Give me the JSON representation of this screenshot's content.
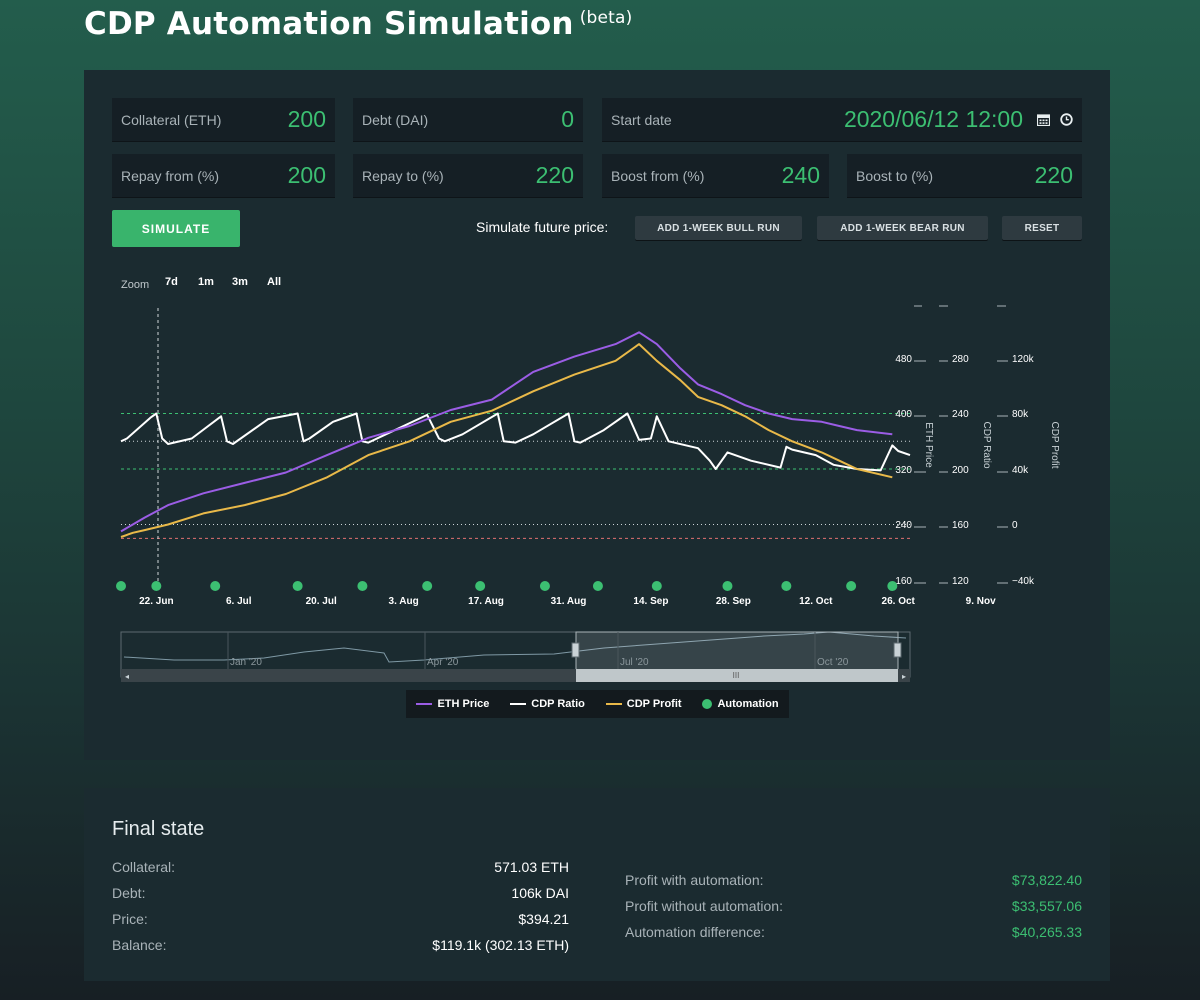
{
  "header": {
    "title": "CDP Automation Simulation",
    "badge": "(beta)"
  },
  "inputs": {
    "collateral": {
      "label": "Collateral (ETH)",
      "value": "200"
    },
    "debt": {
      "label": "Debt (DAI)",
      "value": "0"
    },
    "start_date": {
      "label": "Start date",
      "value": "2020/06/12 12:00",
      "icons": [
        "calendar-icon",
        "clock-icon"
      ]
    },
    "repay_from": {
      "label": "Repay from (%)",
      "value": "200"
    },
    "repay_to": {
      "label": "Repay to (%)",
      "value": "220"
    },
    "boost_from": {
      "label": "Boost from (%)",
      "value": "240"
    },
    "boost_to": {
      "label": "Boost to (%)",
      "value": "220"
    }
  },
  "actions": {
    "simulate": "SIMULATE",
    "future_label": "Simulate future price:",
    "bull": "ADD 1-WEEK BULL RUN",
    "bear": "ADD 1-WEEK BEAR RUN",
    "reset": "RESET"
  },
  "zoom": {
    "label": "Zoom",
    "options": [
      "7d",
      "1m",
      "3m",
      "All"
    ]
  },
  "legend": [
    {
      "name": "ETH Price",
      "color": "#9b5de5"
    },
    {
      "name": "CDP Ratio",
      "color": "#ffffff"
    },
    {
      "name": "CDP Profit",
      "color": "#e9b949"
    },
    {
      "name": "Automation",
      "color": "#3cbf72"
    }
  ],
  "navigator_labels": [
    "Jan '20",
    "Apr '20",
    "Jul '20",
    "Oct '20"
  ],
  "chart_data": {
    "type": "line",
    "x_ticks": [
      "22. Jun",
      "6. Jul",
      "20. Jul",
      "3. Aug",
      "17. Aug",
      "31. Aug",
      "14. Sep",
      "28. Sep",
      "12. Oct",
      "26. Oct",
      "9. Nov"
    ],
    "axes": [
      {
        "title": "ETH Price",
        "ticks": [
          "480",
          "400",
          "320",
          "240",
          "160"
        ]
      },
      {
        "title": "CDP Ratio",
        "ticks": [
          "280",
          "240",
          "200",
          "160",
          "120"
        ]
      },
      {
        "title": "CDP Profit",
        "ticks": [
          "120k",
          "80k",
          "40k",
          "0",
          "−40k"
        ]
      }
    ],
    "ratio_lines": {
      "boost": 240,
      "target": 220,
      "repay": 200,
      "liquidation": 150
    },
    "series": [
      {
        "name": "ETH Price",
        "unit": "USD",
        "x": [
          0,
          2,
          4,
          8,
          14,
          21,
          28,
          35,
          42,
          49,
          56,
          63,
          70,
          77,
          84,
          88,
          91,
          95,
          98,
          102,
          106,
          110,
          114,
          119,
          122,
          125,
          131
        ],
        "values": [
          230,
          240,
          250,
          268,
          285,
          300,
          315,
          340,
          365,
          382,
          405,
          420,
          460,
          482,
          500,
          517,
          500,
          465,
          442,
          428,
          412,
          400,
          392,
          388,
          382,
          376,
          370
        ]
      },
      {
        "name": "CDP Ratio",
        "unit": "%",
        "x": [
          0,
          1,
          5,
          6,
          7,
          8,
          12,
          17,
          18,
          19,
          25,
          30,
          31,
          32,
          36,
          40,
          41,
          42,
          52,
          54,
          55,
          58,
          64,
          65,
          67,
          70,
          76,
          77,
          78,
          82,
          86,
          88,
          90,
          91,
          93,
          98,
          100,
          101,
          103,
          107,
          112,
          113,
          114,
          118,
          121,
          125,
          129,
          131,
          132,
          134
        ],
        "values": [
          220,
          222,
          237,
          240,
          222,
          218,
          222,
          238,
          220,
          218,
          236,
          240,
          220,
          222,
          234,
          240,
          220,
          219,
          239,
          222,
          220,
          225,
          240,
          220,
          219,
          225,
          240,
          220,
          219,
          228,
          240,
          221,
          222,
          238,
          220,
          215,
          206,
          200,
          212,
          206,
          201,
          216,
          214,
          210,
          203,
          200,
          199,
          217,
          213,
          210
        ]
      },
      {
        "name": "CDP Profit",
        "unit": "USD",
        "x": [
          0,
          2,
          4,
          8,
          14,
          21,
          28,
          35,
          42,
          49,
          56,
          63,
          70,
          77,
          84,
          88,
          91,
          95,
          98,
          102,
          106,
          110,
          114,
          119,
          122,
          125,
          131
        ],
        "values": [
          -9000,
          -6000,
          -4000,
          0,
          8000,
          14000,
          22000,
          34000,
          50000,
          60000,
          74000,
          82000,
          96000,
          108000,
          118000,
          130000,
          118000,
          104000,
          92000,
          86000,
          78000,
          68000,
          60000,
          52000,
          46000,
          40000,
          34000
        ]
      }
    ],
    "automation_days": [
      0,
      6,
      16,
      30,
      41,
      52,
      61,
      72,
      81,
      91,
      103,
      113,
      124,
      131
    ]
  },
  "final_state": {
    "title": "Final state",
    "rows": [
      {
        "label": "Collateral:",
        "value": "571.03 ETH"
      },
      {
        "label": "Debt:",
        "value": "106k DAI"
      },
      {
        "label": "Price:",
        "value": "$394.21"
      },
      {
        "label": "Balance:",
        "value": "$119.1k (302.13 ETH)"
      }
    ],
    "profit_rows": [
      {
        "label": "Profit with automation:",
        "value": "$73,822.40"
      },
      {
        "label": "Profit without automation:",
        "value": "$33,557.06"
      },
      {
        "label": "Automation difference:",
        "value": "$40,265.33"
      }
    ]
  }
}
